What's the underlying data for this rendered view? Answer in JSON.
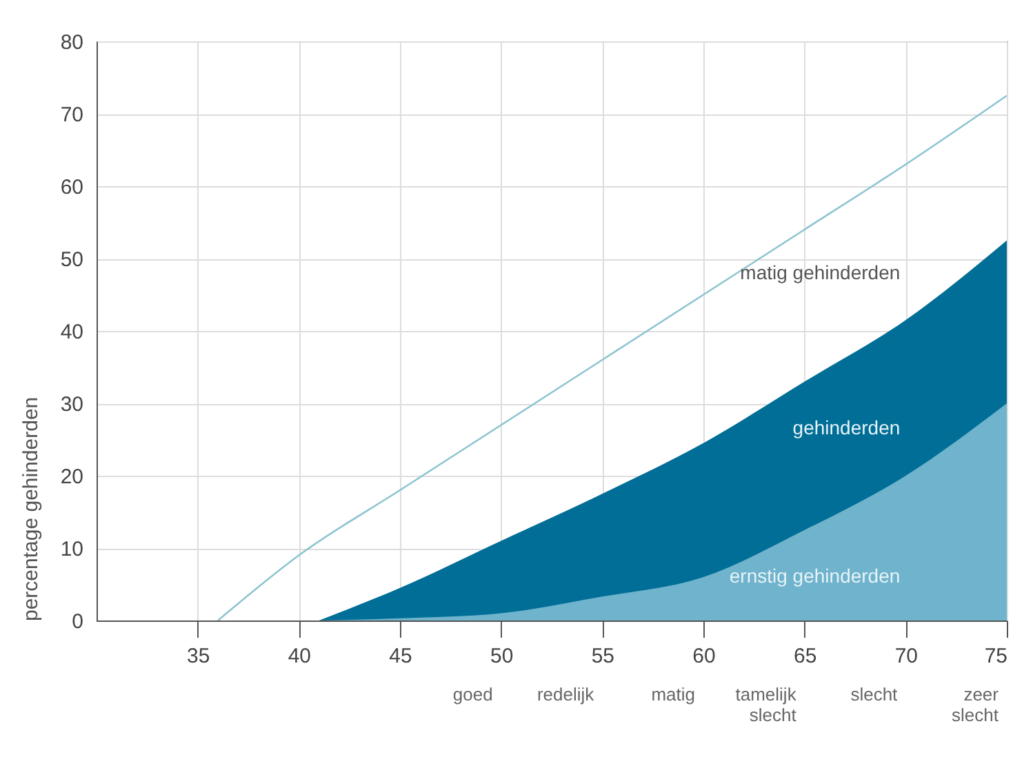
{
  "chart_data": {
    "type": "area",
    "ylabel": "percentage gehinderden",
    "xlim": [
      30,
      75
    ],
    "xticks": [
      35,
      40,
      45,
      50,
      55,
      60,
      65,
      70,
      75
    ],
    "ylim": [
      0,
      80
    ],
    "yticks": [
      0,
      10,
      20,
      30,
      40,
      50,
      60,
      70,
      80
    ],
    "grid": true,
    "legend": false,
    "series": [
      {
        "name": "matig gehinderden",
        "type": "line",
        "color": "#8cc4d0",
        "x": [
          36,
          40,
          45,
          50,
          55,
          60,
          65,
          70,
          75
        ],
        "values": [
          0,
          9,
          18,
          27,
          36,
          45,
          54,
          63,
          72.5
        ]
      },
      {
        "name": "gehinderden",
        "color": "#006e96",
        "x": [
          41,
          45,
          50,
          55,
          60,
          65,
          70,
          75
        ],
        "values": [
          0,
          4.5,
          11,
          17.5,
          24.5,
          33,
          41.5,
          52.5
        ]
      },
      {
        "name": "ernstig gehinderden",
        "color": "#6fb3cc",
        "x": [
          41,
          45,
          50,
          55,
          60,
          65,
          70,
          75
        ],
        "values": [
          0,
          0.3,
          1,
          3.3,
          6,
          12.5,
          20,
          30
        ]
      }
    ],
    "annotations": [
      "goed",
      "redelijk",
      "matig",
      "tamelijk slecht",
      "slecht",
      "zeer slecht"
    ]
  }
}
